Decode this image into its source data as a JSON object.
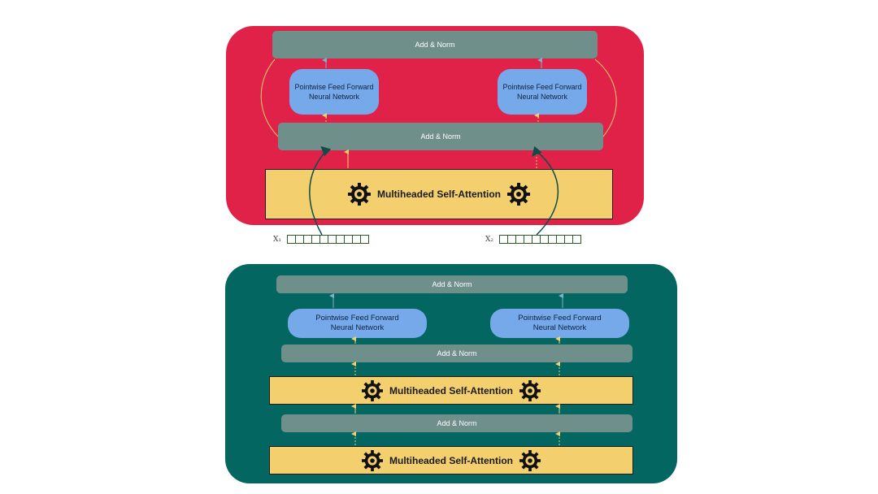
{
  "labels": {
    "add_norm": "Add & Norm",
    "ffn_line1": "Pointwise Feed Forward",
    "ffn_line2": "Neural Network",
    "attention": "Multiheaded Self-Attention",
    "x1": "X₁",
    "x2": "X₂"
  },
  "colors": {
    "top_panel": "#e02148",
    "bottom_panel": "#036660",
    "bar": "#6f8f8a",
    "ffn": "#76a9e9",
    "attention": "#f3d06d",
    "arrow_yellow": "#f3d06d",
    "arrow_teal": "#0e4d4a"
  },
  "icons": {
    "attention_icon": "gear-icon",
    "input_vector": "vector-cells"
  },
  "vector_cells": 10
}
